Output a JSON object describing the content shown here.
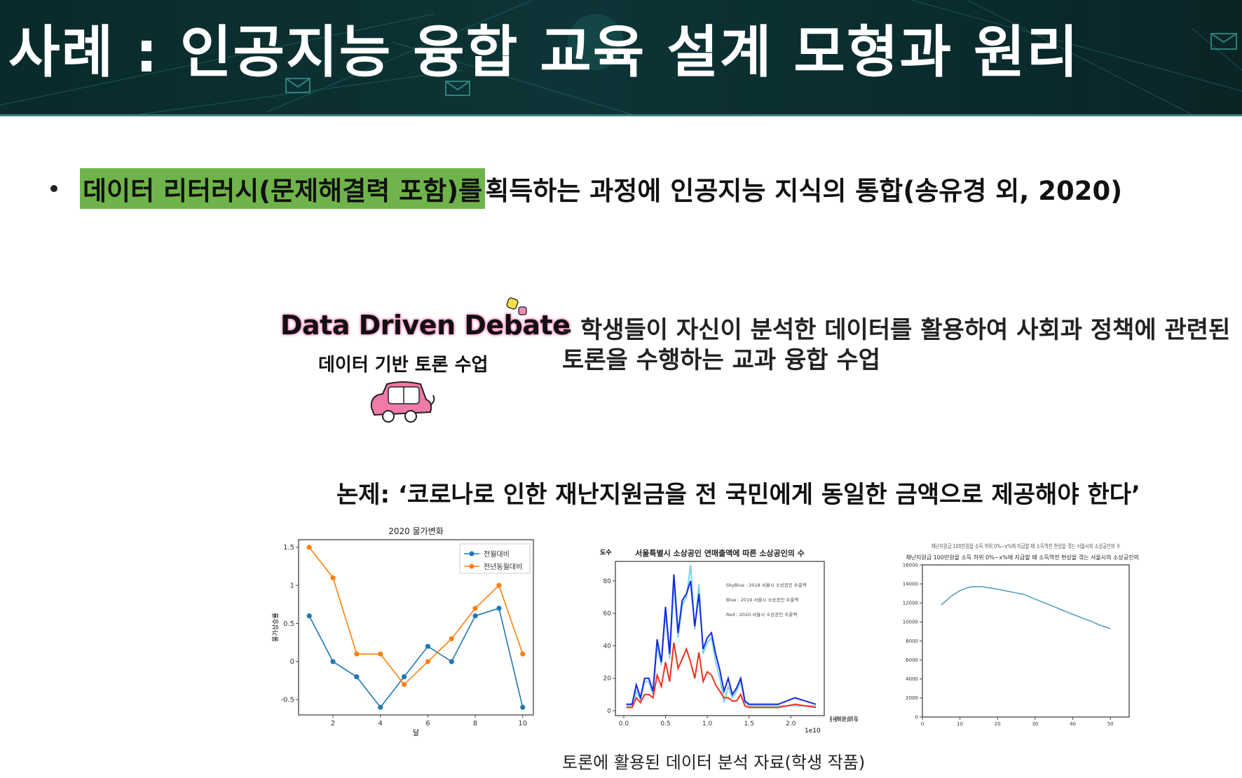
{
  "header": {
    "title": "사례 : 인공지능 융합 교육 설계 모형과 원리"
  },
  "bullet": {
    "highlighted": "데이터 리터러시(문제해결력 포함)를",
    "rest": " 획득하는 과정에 인공지능 지식의 통합(송유경 외, 2020)",
    "highlight_color": "#6fb44a"
  },
  "logo": {
    "title": "Data Driven Debate",
    "subtitle": "데이터 기반 토론 수업",
    "accent": "#f07aa8"
  },
  "description": {
    "line1": "- 학생들이 자신이 분석한 데이터를 활용하여 사회과 정책에 관련된",
    "line2": "토론을 수행하는 교과 융합 수업"
  },
  "topic": "논제: ‘코로나로 인한 재난지원금을 전 국민에게 동일한 금액으로 제공해야 한다’",
  "caption": "토론에 활용된 데이터 분석 자료(학생 작품)",
  "chart_data": [
    {
      "type": "line",
      "title": "2020 물가변화",
      "xlabel": "달",
      "ylabel": "물가상승률",
      "x": [
        1,
        2,
        3,
        4,
        5,
        6,
        7,
        8,
        9,
        10
      ],
      "xlim": [
        0.55,
        10.45
      ],
      "ylim": [
        -0.7,
        1.6
      ],
      "xticks": [
        2,
        4,
        6,
        8,
        10
      ],
      "yticks": [
        -0.5,
        0.0,
        0.5,
        1.0,
        1.5
      ],
      "legend": "top-right",
      "markers": true,
      "series": [
        {
          "name": "전월대비",
          "color": "#1f77b4",
          "values": [
            0.6,
            0.0,
            -0.2,
            -0.6,
            -0.2,
            0.2,
            0.0,
            0.6,
            0.7,
            -0.6
          ]
        },
        {
          "name": "전년동월대비",
          "color": "#ff7f0e",
          "values": [
            1.5,
            1.1,
            0.1,
            0.1,
            -0.3,
            0.0,
            0.3,
            0.7,
            1.0,
            0.1
          ]
        }
      ]
    },
    {
      "type": "line",
      "title": "서울특별시 소상공인 연매출액에 따른 소상공인의 수",
      "ylabel": "도수",
      "xlabel": "총 수출액에 대한 상대적 지표",
      "x_offset_label": "1e10",
      "x": [
        0.03,
        0.05,
        0.1,
        0.15,
        0.2,
        0.25,
        0.3,
        0.35,
        0.4,
        0.45,
        0.5,
        0.55,
        0.6,
        0.65,
        0.7,
        0.75,
        0.8,
        0.85,
        0.9,
        0.95,
        1.0,
        1.05,
        1.1,
        1.15,
        1.2,
        1.25,
        1.3,
        1.35,
        1.4,
        1.45,
        1.5,
        1.85,
        2.05,
        2.3
      ],
      "xlim": [
        -0.1,
        2.4
      ],
      "ylim": [
        -3,
        92
      ],
      "xticks": [
        0.0,
        0.5,
        1.0,
        1.5,
        2.0
      ],
      "yticks": [
        0,
        20,
        40,
        60,
        80
      ],
      "annotations": [
        "SkyBlue : 2018 서울시 소상공인 수출액",
        "Blue : 2019 서울시 소상공인 수출액",
        "Red : 2020 서울시 소상공인 수출액"
      ],
      "series": [
        {
          "color": "#7fd3e8",
          "values": [
            3,
            3,
            3,
            12,
            7,
            18,
            18,
            10,
            40,
            28,
            60,
            32,
            78,
            45,
            65,
            70,
            90,
            50,
            78,
            35,
            42,
            45,
            30,
            20,
            5,
            15,
            8,
            12,
            18,
            5,
            3,
            3,
            3,
            3
          ]
        },
        {
          "color": "#1428e0",
          "values": [
            4,
            4,
            4,
            16,
            8,
            20,
            20,
            12,
            44,
            30,
            64,
            35,
            84,
            48,
            68,
            72,
            80,
            52,
            72,
            38,
            45,
            48,
            35,
            25,
            12,
            20,
            10,
            14,
            20,
            6,
            4,
            4,
            8,
            4
          ]
        },
        {
          "color": "#f0321e",
          "values": [
            2,
            2,
            2,
            8,
            5,
            10,
            10,
            8,
            22,
            15,
            30,
            18,
            42,
            26,
            32,
            38,
            30,
            20,
            36,
            18,
            24,
            22,
            16,
            12,
            8,
            8,
            6,
            6,
            10,
            3,
            2,
            2,
            4,
            2
          ]
        }
      ]
    },
    {
      "type": "line",
      "title": "재난지원금 100만원을 소득 하위 0%~x%에 지급할 때 소득역전 현상을 겪는 서울시의 소상공인의 수",
      "x": [
        5,
        8,
        10,
        12,
        13,
        16,
        20,
        25,
        27,
        30,
        35,
        40,
        45,
        47,
        50
      ],
      "xlim": [
        0,
        55
      ],
      "ylim": [
        0,
        16000
      ],
      "xticks": [
        0,
        10,
        20,
        30,
        40,
        50
      ],
      "yticks": [
        0,
        2000,
        4000,
        6000,
        8000,
        10000,
        12000,
        14000,
        16000
      ],
      "series": [
        {
          "color": "#5a9ec0",
          "values": [
            11800,
            12800,
            13300,
            13600,
            13700,
            13700,
            13450,
            13050,
            12900,
            12400,
            11600,
            10800,
            10050,
            9700,
            9300
          ]
        }
      ]
    }
  ]
}
